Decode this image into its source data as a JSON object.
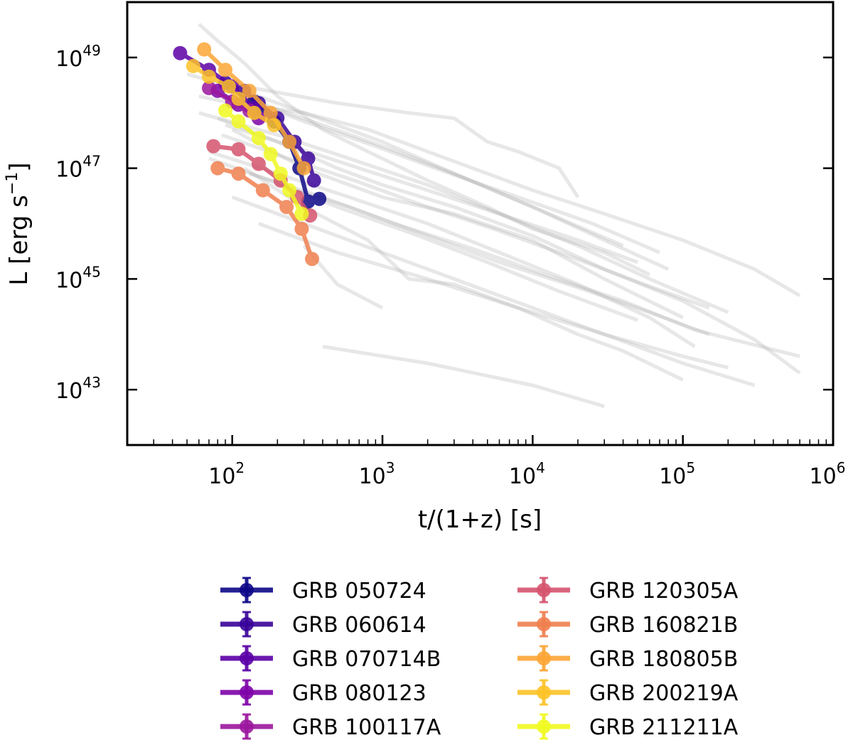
{
  "chart_data": {
    "type": "line",
    "xlabel": "t/(1+z) [s]",
    "ylabel_main": "L [erg s",
    "ylabel_sup": "−1",
    "ylabel_close": "]",
    "xscale": "log",
    "yscale": "log",
    "xlim": [
      20,
      1000000
    ],
    "ylim": [
      1e+42,
      1e+50
    ],
    "grid": false,
    "legend_position": "below",
    "x_ticks": [
      {
        "value": 100,
        "base": "10",
        "exp": "2"
      },
      {
        "value": 1000,
        "base": "10",
        "exp": "3"
      },
      {
        "value": 10000,
        "base": "10",
        "exp": "4"
      },
      {
        "value": 100000,
        "base": "10",
        "exp": "5"
      },
      {
        "value": 1000000,
        "base": "10",
        "exp": "6"
      }
    ],
    "y_ticks": [
      {
        "value": 1e+43,
        "base": "10",
        "exp": "43"
      },
      {
        "value": 1e+45,
        "base": "10",
        "exp": "45"
      },
      {
        "value": 1e+47,
        "base": "10",
        "exp": "47"
      },
      {
        "value": 1e+49,
        "base": "10",
        "exp": "49"
      }
    ],
    "background_series_color": "#b0b0b0",
    "background_series": [
      [
        [
          60,
          4e+49
        ],
        [
          80,
          2e+49
        ],
        [
          120,
          8e+48
        ],
        [
          200,
          2e+48
        ],
        [
          400,
          5e+47
        ],
        [
          800,
          2e+47
        ],
        [
          2000,
          6e+46
        ],
        [
          5000,
          2e+46
        ],
        [
          10000,
          8e+45
        ],
        [
          30000,
          3e+45
        ],
        [
          60000,
          1.2e+45
        ]
      ],
      [
        [
          120,
          3e+48
        ],
        [
          500,
          1.5e+48
        ],
        [
          1500,
          1e+48
        ],
        [
          3000,
          8e+47
        ],
        [
          5000,
          3e+47
        ],
        [
          8000,
          2e+47
        ],
        [
          15000,
          1e+47
        ],
        [
          20000,
          3e+46
        ]
      ],
      [
        [
          60,
          2e+48
        ],
        [
          100,
          1.5e+48
        ],
        [
          300,
          1e+48
        ],
        [
          800,
          5e+47
        ],
        [
          2000,
          2e+47
        ],
        [
          5000,
          8e+46
        ],
        [
          10000,
          4e+46
        ],
        [
          30000,
          1.5e+46
        ],
        [
          100000,
          5e+45
        ],
        [
          300000,
          1.5e+45
        ],
        [
          600000,
          5e+44
        ]
      ],
      [
        [
          80,
          8e+47
        ],
        [
          200,
          3e+47
        ],
        [
          500,
          1e+47
        ],
        [
          1000,
          5e+46
        ],
        [
          3000,
          2e+46
        ],
        [
          10000,
          6e+45
        ],
        [
          30000,
          1.5e+45
        ],
        [
          100000,
          4e+44
        ],
        [
          300000,
          8e+43
        ],
        [
          600000,
          2e+43
        ]
      ],
      [
        [
          100,
          5e+47
        ],
        [
          300,
          1e+47
        ],
        [
          1000,
          3e+46
        ],
        [
          3000,
          1.5e+46
        ],
        [
          10000,
          5e+45
        ],
        [
          30000,
          1e+45
        ],
        [
          100000,
          2e+44
        ]
      ],
      [
        [
          150,
          1e+46
        ],
        [
          500,
          3e+45
        ],
        [
          2000,
          1e+45
        ],
        [
          8000,
          3e+44
        ],
        [
          30000,
          1e+44
        ],
        [
          100000,
          3e+43
        ],
        [
          300000,
          1.2e+43
        ]
      ],
      [
        [
          400,
          6e+43
        ],
        [
          2000,
          3e+43
        ],
        [
          10000,
          1.2e+43
        ],
        [
          30000,
          5e+42
        ]
      ],
      [
        [
          70,
          2e+47
        ],
        [
          200,
          8e+46
        ],
        [
          600,
          3e+46
        ],
        [
          2000,
          1e+46
        ],
        [
          6000,
          3e+45
        ],
        [
          20000,
          8e+44
        ],
        [
          60000,
          2e+44
        ],
        [
          120000,
          6e+43
        ]
      ],
      [
        [
          120,
          1e+47
        ],
        [
          300,
          2e+46
        ],
        [
          800,
          5e+45
        ],
        [
          1500,
          1e+45
        ],
        [
          3000,
          8e+44
        ],
        [
          8000,
          3e+44
        ],
        [
          20000,
          1e+44
        ],
        [
          40000,
          5e+43
        ],
        [
          100000,
          1.5e+43
        ]
      ],
      [
        [
          50,
          5e+48
        ],
        [
          100,
          3e+48
        ],
        [
          300,
          1e+48
        ],
        [
          1000,
          3e+47
        ],
        [
          3000,
          8e+46
        ],
        [
          10000,
          2e+46
        ],
        [
          30000,
          5e+45
        ],
        [
          80000,
          1.5e+45
        ]
      ],
      [
        [
          60,
          1e+48
        ],
        [
          200,
          4e+47
        ],
        [
          600,
          1.5e+47
        ],
        [
          2000,
          5e+46
        ],
        [
          6000,
          1.5e+46
        ],
        [
          20000,
          4e+45
        ],
        [
          60000,
          1e+45
        ],
        [
          200000,
          2.5e+44
        ]
      ],
      [
        [
          80,
          3e+48
        ],
        [
          150,
          1.5e+48
        ],
        [
          400,
          6e+47
        ],
        [
          1000,
          2.5e+47
        ],
        [
          3000,
          8e+46
        ],
        [
          10000,
          2e+46
        ],
        [
          40000,
          4e+45
        ]
      ],
      [
        [
          200,
          5e+46
        ],
        [
          600,
          2e+46
        ],
        [
          2000,
          6e+45
        ],
        [
          6000,
          2e+45
        ],
        [
          20000,
          7e+44
        ],
        [
          60000,
          2.5e+44
        ],
        [
          150000,
          1e+44
        ]
      ],
      [
        [
          100,
          3e+46
        ],
        [
          300,
          1e+46
        ],
        [
          1000,
          3e+45
        ],
        [
          3000,
          1e+45
        ],
        [
          10000,
          3e+44
        ],
        [
          30000,
          1e+44
        ],
        [
          100000,
          4e+43
        ],
        [
          200000,
          2.5e+43
        ]
      ],
      [
        [
          300,
          4e+45
        ],
        [
          500,
          8e+44
        ],
        [
          1000,
          3e+44
        ]
      ],
      [
        [
          90,
          6e+47
        ],
        [
          250,
          2.5e+47
        ],
        [
          700,
          1e+47
        ],
        [
          2000,
          4e+46
        ],
        [
          6000,
          1.5e+46
        ],
        [
          20000,
          5e+45
        ],
        [
          50000,
          2e+45
        ]
      ],
      [
        [
          110,
          2e+48
        ],
        [
          300,
          7e+47
        ],
        [
          900,
          2.5e+47
        ],
        [
          2500,
          9e+46
        ],
        [
          8000,
          3e+46
        ],
        [
          25000,
          1e+46
        ],
        [
          70000,
          3e+45
        ]
      ],
      [
        [
          70,
          1.5e+47
        ],
        [
          180,
          6e+46
        ],
        [
          500,
          2e+46
        ],
        [
          1500,
          7e+45
        ],
        [
          5000,
          2e+45
        ],
        [
          15000,
          6e+44
        ],
        [
          50000,
          1.8e+44
        ]
      ],
      [
        [
          130,
          8e+46
        ],
        [
          400,
          3e+46
        ],
        [
          1200,
          1e+46
        ],
        [
          4000,
          3.5e+45
        ],
        [
          12000,
          1.2e+45
        ],
        [
          40000,
          4e+44
        ],
        [
          120000,
          1.2e+44
        ],
        [
          600000,
          4e+43
        ]
      ],
      [
        [
          85,
          4e+47
        ],
        [
          220,
          1.6e+47
        ],
        [
          650,
          6e+46
        ],
        [
          1800,
          2.2e+46
        ],
        [
          5500,
          8e+45
        ],
        [
          18000,
          2.5e+45
        ],
        [
          55000,
          8e+44
        ],
        [
          150000,
          3e+44
        ]
      ]
    ],
    "series": [
      {
        "name": "GRB 050724",
        "color": "#0d0887",
        "points": [
          [
            140,
            1.6e+48
          ],
          [
            190,
            7e+47
          ],
          [
            240,
            3e+47
          ],
          [
            280,
            1e+47
          ],
          [
            320,
            2.5e+46
          ],
          [
            380,
            2.8e+46
          ]
        ]
      },
      {
        "name": "GRB 060614",
        "color": "#3a049a",
        "points": [
          [
            90,
            3.5e+48
          ],
          [
            120,
            2.5e+48
          ],
          [
            150,
            1.5e+48
          ],
          [
            200,
            8e+47
          ],
          [
            260,
            3e+47
          ],
          [
            320,
            1.5e+47
          ],
          [
            350,
            6e+46
          ]
        ]
      },
      {
        "name": "GRB 070714B",
        "color": "#5c01a6",
        "points": [
          [
            45,
            1.2e+49
          ],
          [
            70,
            6e+48
          ],
          [
            100,
            3e+48
          ],
          [
            140,
            1.2e+48
          ]
        ]
      },
      {
        "name": "GRB 080123",
        "color": "#7e03a8",
        "points": [
          [
            80,
            2.5e+48
          ],
          [
            110,
            1.4e+48
          ],
          [
            150,
            8e+47
          ]
        ]
      },
      {
        "name": "GRB 100117A",
        "color": "#9c179e",
        "points": [
          [
            70,
            2.8e+48
          ],
          [
            100,
            1.6e+48
          ],
          [
            130,
            1.1e+48
          ]
        ]
      },
      {
        "name": "GRB 120305A",
        "color": "#d5546e",
        "points": [
          [
            75,
            2.5e+47
          ],
          [
            110,
            2.2e+47
          ],
          [
            150,
            1.2e+47
          ],
          [
            210,
            6e+46
          ],
          [
            270,
            3e+46
          ],
          [
            330,
            1.4e+46
          ]
        ]
      },
      {
        "name": "GRB 160821B",
        "color": "#f0804f",
        "points": [
          [
            80,
            1e+47
          ],
          [
            110,
            8e+46
          ],
          [
            160,
            4e+46
          ],
          [
            230,
            2e+46
          ],
          [
            290,
            8e+45
          ],
          [
            340,
            2.3e+45
          ]
        ]
      },
      {
        "name": "GRB 180805B",
        "color": "#fca636",
        "points": [
          [
            65,
            1.4e+49
          ],
          [
            90,
            6e+48
          ],
          [
            130,
            2.5e+48
          ],
          [
            180,
            1e+48
          ],
          [
            240,
            3e+47
          ],
          [
            300,
            1e+47
          ]
        ]
      },
      {
        "name": "GRB 200219A",
        "color": "#fdc328",
        "points": [
          [
            55,
            7e+48
          ],
          [
            70,
            4.5e+48
          ],
          [
            95,
            3e+48
          ],
          [
            110,
            1.8e+48
          ],
          [
            140,
            1e+48
          ],
          [
            190,
            6e+47
          ]
        ]
      },
      {
        "name": "GRB 211211A",
        "color": "#f0f921",
        "points": [
          [
            90,
            1.1e+48
          ],
          [
            110,
            7e+47
          ],
          [
            150,
            3.5e+47
          ],
          [
            180,
            1.8e+47
          ],
          [
            210,
            8e+46
          ],
          [
            240,
            4e+46
          ],
          [
            290,
            1.5e+46
          ]
        ]
      }
    ]
  }
}
